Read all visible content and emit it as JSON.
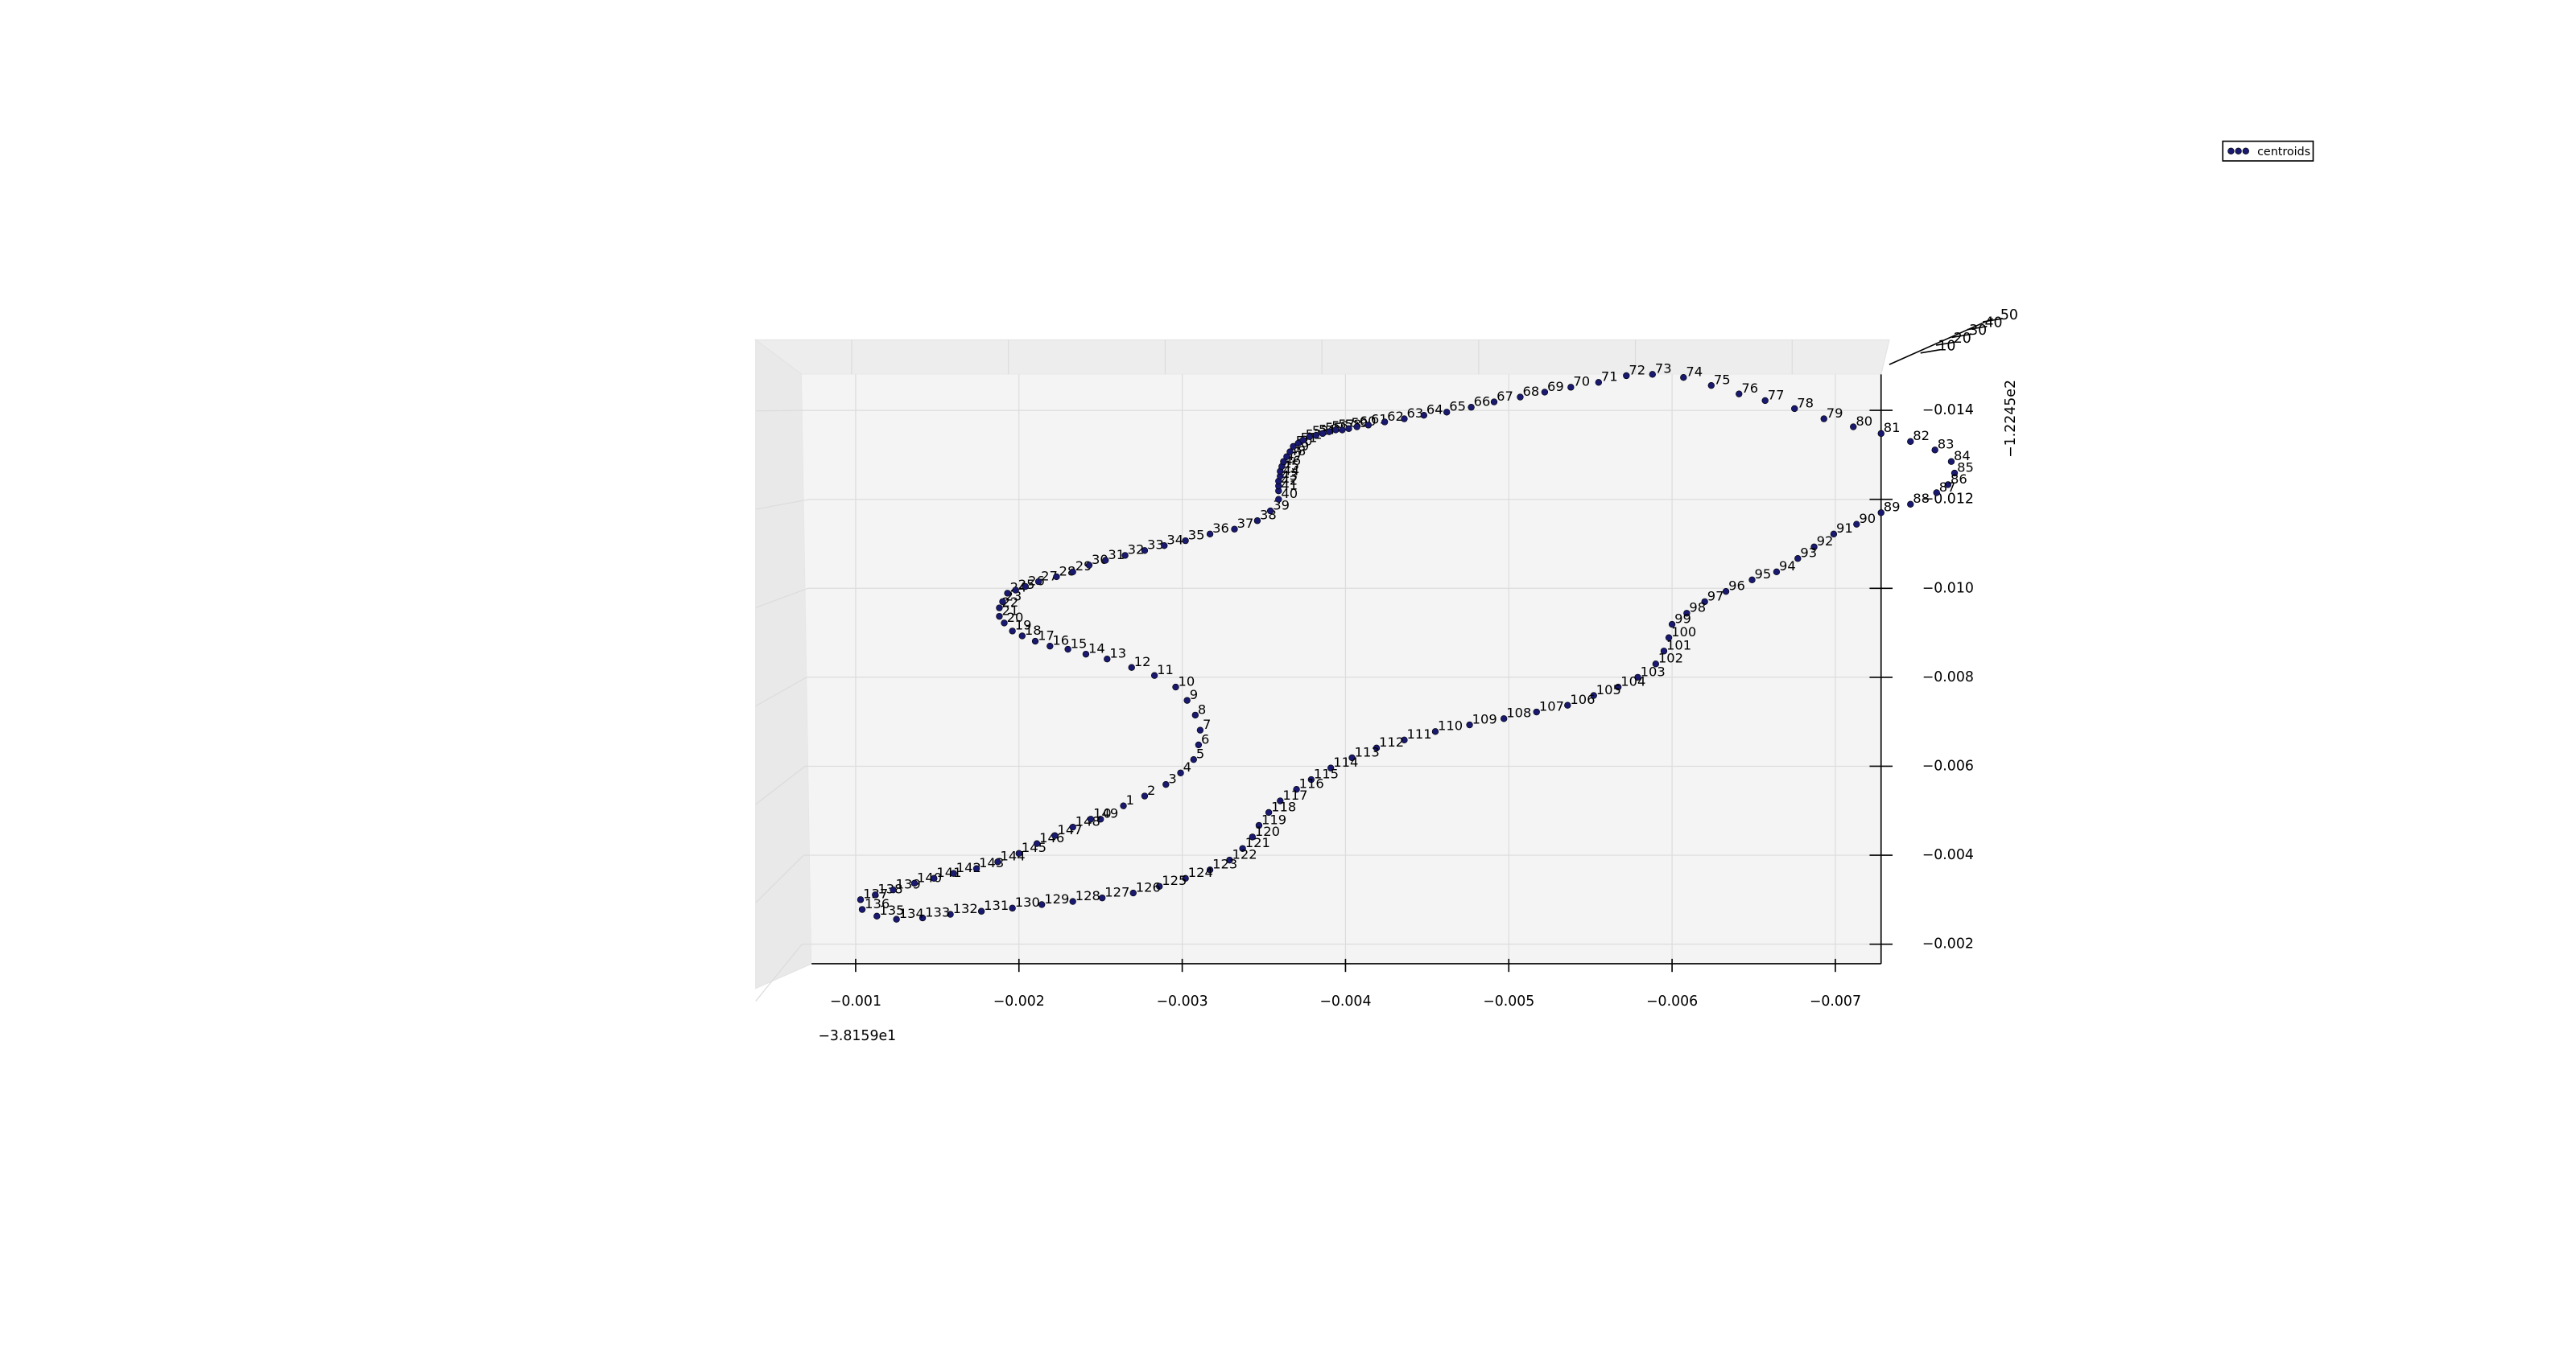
{
  "chart_data": {
    "type": "scatter3d",
    "series": [
      {
        "name": "centroids",
        "color": "#191970",
        "x": [
          -0.0025,
          -0.00264,
          -0.00277,
          -0.0029,
          -0.00299,
          -0.00307,
          -0.0031,
          -0.00311,
          -0.00308,
          -0.00303,
          -0.00296,
          -0.00283,
          -0.00269,
          -0.00254,
          -0.00241,
          -0.0023,
          -0.00219,
          -0.0021,
          -0.00202,
          -0.00196,
          -0.00191,
          -0.00188,
          -0.00188,
          -0.0019,
          -0.00193,
          -0.00198,
          -0.00204,
          -0.00212,
          -0.00223,
          -0.00233,
          -0.00243,
          -0.00253,
          -0.00265,
          -0.00277,
          -0.00289,
          -0.00302,
          -0.00317,
          -0.00332,
          -0.00346,
          -0.00354,
          -0.00359,
          -0.00359,
          -0.00359,
          -0.00359,
          -0.0036,
          -0.0036,
          -0.00361,
          -0.00362,
          -0.00364,
          -0.00366,
          -0.00368,
          -0.00371,
          -0.00374,
          -0.00378,
          -0.00382,
          -0.00386,
          -0.0039,
          -0.00394,
          -0.00398,
          -0.00402,
          -0.00407,
          -0.00414,
          -0.00424,
          -0.00436,
          -0.00448,
          -0.00462,
          -0.00477,
          -0.00491,
          -0.00507,
          -0.00522,
          -0.00538,
          -0.00555,
          -0.00572,
          -0.00588,
          -0.00607,
          -0.00624,
          -0.00641,
          -0.00657,
          -0.00675,
          -0.00693,
          -0.00711,
          -0.00728,
          -0.00746,
          -0.00761,
          -0.00771,
          -0.00773,
          -0.00769,
          -0.00762,
          -0.00746,
          -0.00728,
          -0.00713,
          -0.00699,
          -0.00687,
          -0.00677,
          -0.00664,
          -0.00649,
          -0.00633,
          -0.0062,
          -0.00609,
          -0.006,
          -0.00598,
          -0.00595,
          -0.0059,
          -0.00579,
          -0.00567,
          -0.00552,
          -0.00536,
          -0.00517,
          -0.00497,
          -0.00476,
          -0.00455,
          -0.00436,
          -0.00419,
          -0.00404,
          -0.00391,
          -0.00379,
          -0.0037,
          -0.0036,
          -0.00353,
          -0.00347,
          -0.00343,
          -0.00337,
          -0.00329,
          -0.00317,
          -0.00302,
          -0.00286,
          -0.0027,
          -0.00251,
          -0.00233,
          -0.00214,
          -0.00196,
          -0.00177,
          -0.00158,
          -0.00141,
          -0.00125,
          -0.00113,
          -0.00104,
          -0.00103,
          -0.00112,
          -0.00123,
          -0.00136,
          -0.00148,
          -0.0016,
          -0.00174,
          -0.00187,
          -0.002,
          -0.00211,
          -0.00222,
          -0.00233,
          -0.00244
        ],
        "y": [
          -0.00481,
          -0.00511,
          -0.00533,
          -0.00559,
          -0.00585,
          -0.00615,
          -0.00648,
          -0.00681,
          -0.00715,
          -0.00748,
          -0.00778,
          -0.00804,
          -0.00822,
          -0.00841,
          -0.00852,
          -0.00863,
          -0.0087,
          -0.00881,
          -0.00893,
          -0.00904,
          -0.00922,
          -0.00937,
          -0.00956,
          -0.0097,
          -0.00989,
          -0.00996,
          -0.01004,
          -0.01015,
          -0.01026,
          -0.01037,
          -0.01052,
          -0.01063,
          -0.01074,
          -0.01085,
          -0.01096,
          -0.01107,
          -0.01122,
          -0.01133,
          -0.01152,
          -0.01174,
          -0.012,
          -0.01219,
          -0.0123,
          -0.01241,
          -0.01252,
          -0.01263,
          -0.01274,
          -0.01285,
          -0.01296,
          -0.01307,
          -0.01319,
          -0.01326,
          -0.01333,
          -0.01341,
          -0.01344,
          -0.01348,
          -0.01352,
          -0.01356,
          -0.01356,
          -0.01359,
          -0.01363,
          -0.01367,
          -0.01374,
          -0.01381,
          -0.01389,
          -0.01396,
          -0.01407,
          -0.01419,
          -0.0143,
          -0.01441,
          -0.01452,
          -0.01463,
          -0.01478,
          -0.01481,
          -0.01474,
          -0.01456,
          -0.01437,
          -0.01422,
          -0.01404,
          -0.01381,
          -0.01363,
          -0.01348,
          -0.0133,
          -0.01311,
          -0.01285,
          -0.01259,
          -0.01233,
          -0.01215,
          -0.01189,
          -0.0117,
          -0.01144,
          -0.01122,
          -0.01093,
          -0.01067,
          -0.01037,
          -0.01019,
          -0.00993,
          -0.0097,
          -0.00944,
          -0.00919,
          -0.00889,
          -0.00859,
          -0.0083,
          -0.008,
          -0.00778,
          -0.00759,
          -0.00737,
          -0.00722,
          -0.00707,
          -0.00693,
          -0.00678,
          -0.00659,
          -0.00641,
          -0.00619,
          -0.00596,
          -0.0057,
          -0.00548,
          -0.00522,
          -0.00496,
          -0.00467,
          -0.00441,
          -0.00415,
          -0.00389,
          -0.00367,
          -0.00348,
          -0.0033,
          -0.00315,
          -0.00304,
          -0.00296,
          -0.00289,
          -0.00281,
          -0.00274,
          -0.00267,
          -0.00259,
          -0.00256,
          -0.00263,
          -0.00278,
          -0.003,
          -0.00311,
          -0.00322,
          -0.00337,
          -0.00348,
          -0.00359,
          -0.0037,
          -0.00385,
          -0.00404,
          -0.00426,
          -0.00444,
          -0.00463,
          -0.00481
        ]
      }
    ],
    "point_labels": [
      0,
      1,
      2,
      3,
      4,
      5,
      6,
      7,
      8,
      9,
      10,
      11,
      12,
      13,
      14,
      15,
      16,
      17,
      18,
      19,
      20,
      21,
      22,
      23,
      24,
      25,
      26,
      27,
      28,
      29,
      30,
      31,
      32,
      33,
      34,
      35,
      36,
      37,
      38,
      39,
      40,
      41,
      42,
      43,
      44,
      45,
      46,
      47,
      48,
      49,
      50,
      51,
      52,
      53,
      54,
      55,
      56,
      57,
      58,
      59,
      60,
      61,
      62,
      63,
      64,
      65,
      66,
      67,
      68,
      69,
      70,
      71,
      72,
      73,
      74,
      75,
      76,
      77,
      78,
      79,
      80,
      81,
      82,
      83,
      84,
      85,
      86,
      87,
      88,
      89,
      90,
      91,
      92,
      93,
      94,
      95,
      96,
      97,
      98,
      99,
      100,
      101,
      102,
      103,
      104,
      105,
      106,
      107,
      108,
      109,
      110,
      111,
      112,
      113,
      114,
      115,
      116,
      117,
      118,
      119,
      120,
      121,
      122,
      123,
      124,
      125,
      126,
      127,
      128,
      129,
      130,
      131,
      132,
      133,
      134,
      135,
      136,
      137,
      138,
      139,
      140,
      141,
      142,
      143,
      144,
      145,
      146,
      147,
      148,
      149
    ],
    "xlim": [
      -0.00073,
      -0.00728
    ],
    "ylim": [
      -0.00156,
      -0.01481
    ],
    "xticks": [
      {
        "value": -0.001,
        "label": "−0.001"
      },
      {
        "value": -0.002,
        "label": "−0.002"
      },
      {
        "value": -0.003,
        "label": "−0.003"
      },
      {
        "value": -0.004,
        "label": "−0.004"
      },
      {
        "value": -0.005,
        "label": "−0.005"
      },
      {
        "value": -0.006,
        "label": "−0.006"
      },
      {
        "value": -0.007,
        "label": "−0.007"
      }
    ],
    "yticks": [
      {
        "value": -0.002,
        "label": "−0.002"
      },
      {
        "value": -0.004,
        "label": "−0.004"
      },
      {
        "value": -0.006,
        "label": "−0.006"
      },
      {
        "value": -0.008,
        "label": "−0.008"
      },
      {
        "value": -0.01,
        "label": "−0.010"
      },
      {
        "value": -0.012,
        "label": "−0.012"
      },
      {
        "value": -0.014,
        "label": "−0.014"
      }
    ],
    "zticks": [
      10,
      20,
      30,
      40,
      50
    ],
    "x_offset_label": "−3.8159e1",
    "y_offset_label": "−1.2245e2",
    "legend": "upper right",
    "grid": true
  }
}
